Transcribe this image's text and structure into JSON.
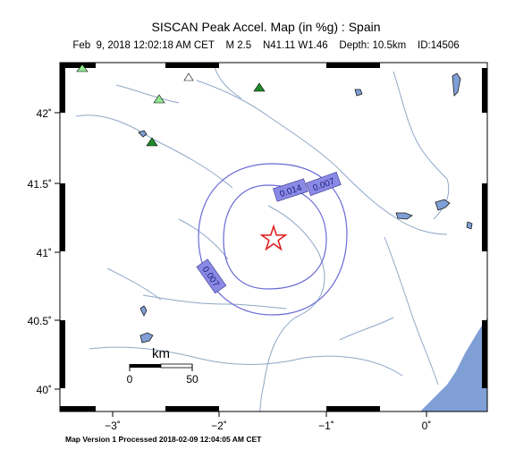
{
  "title": "SISCAN Peak Accel. Map (in %g) : Spain",
  "subtitle": "Feb  9, 2018 12:02:18 AM CET    M 2.5    N41.11 W1.46    Depth: 10.5km    ID:14506",
  "footer": "Map Version 1 Processed 2018-02-09 12:04:05 AM CET",
  "axes": {
    "lat_ticks": [
      "42˚",
      "41.5˚",
      "41˚",
      "40.5˚",
      "40˚"
    ],
    "lon_ticks": [
      "−3˚",
      "−2˚",
      "−1˚",
      "0˚"
    ]
  },
  "contours": [
    {
      "label": "0.007"
    },
    {
      "label": "0.014"
    },
    {
      "label": "0.007"
    }
  ],
  "scale_bar": {
    "unit": "km",
    "start": "0",
    "end": "50"
  },
  "colors": {
    "river": "#8fa8c6",
    "contour": "#6a6ad6",
    "contour_label_bg": "#8a8ae6",
    "sea": "#7f9fd6",
    "epicenter": "#e01818",
    "station_green": "#1f8a2a",
    "station_light": "#90e890"
  },
  "epicenter": {
    "icon": "star-icon"
  },
  "stations_icon": "triangle-icon"
}
